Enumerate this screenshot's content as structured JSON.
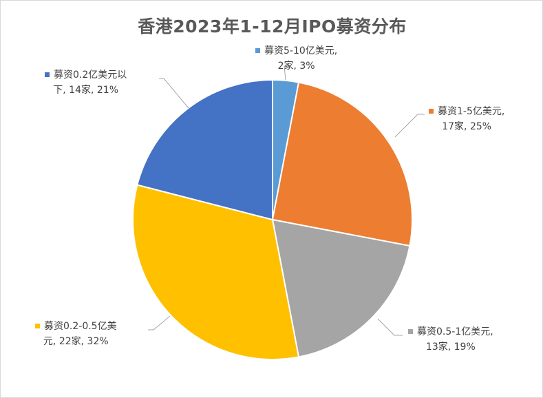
{
  "chart_data": {
    "type": "pie",
    "title": "香港2023年1-12月IPO募资分布",
    "slices": [
      {
        "name": "募资5-10亿美元",
        "count_label": "2家",
        "percent_label": "3%",
        "value": 3,
        "color": "#5B9BD5"
      },
      {
        "name": "募资1-5亿美元",
        "count_label": "17家",
        "percent_label": "25%",
        "value": 25,
        "color": "#ED7D31"
      },
      {
        "name": "募资0.5-1亿美元",
        "count_label": "13家",
        "percent_label": "19%",
        "value": 19,
        "color": "#A5A5A5"
      },
      {
        "name": "募资0.2-0.5亿美元",
        "count_label": "22家",
        "percent_label": "32%",
        "value": 32,
        "color": "#FFC000"
      },
      {
        "name": "募资0.2亿美元以下",
        "count_label": "14家",
        "percent_label": "21%",
        "value": 21,
        "color": "#4472C4"
      }
    ],
    "labels": [
      {
        "line1": "募资5-10亿美元,",
        "line2": "2家, 3%"
      },
      {
        "line1": "募资1-5亿美元,",
        "line2": "17家, 25%"
      },
      {
        "line1": "募资0.5-1亿美元,",
        "line2": "13家, 19%"
      },
      {
        "line1": "募资0.2-0.5亿美",
        "line2": "元, 22家, 32%"
      },
      {
        "line1": "募资0.2亿美元以",
        "line2": "下, 14家, 21%"
      }
    ]
  }
}
